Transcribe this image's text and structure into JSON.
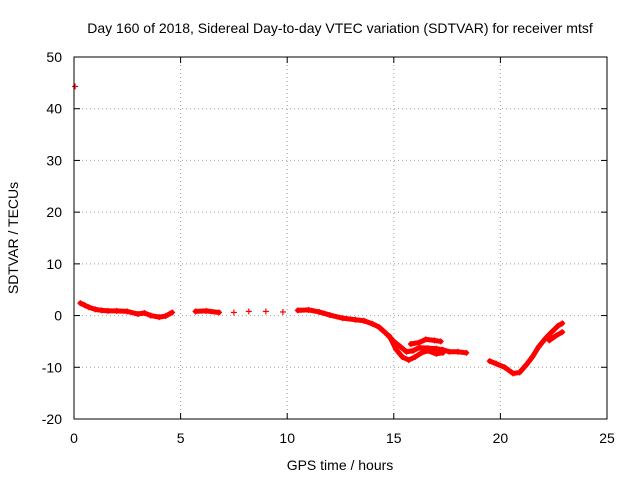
{
  "chart_data": {
    "type": "scatter",
    "title": "Day 160 of 2018, Sidereal Day-to-day VTEC variation (SDTVAR) for receiver mtsf",
    "xlabel": "GPS time / hours",
    "ylabel": "SDTVAR / TECUs",
    "xlim": [
      0,
      25
    ],
    "ylim": [
      -20,
      50
    ],
    "xticks": [
      "0",
      "5",
      "10",
      "15",
      "20",
      "25"
    ],
    "yticks": [
      "-20",
      "-10",
      "0",
      "10",
      "20",
      "30",
      "40",
      "50"
    ],
    "grid": true,
    "series": [
      {
        "name": "sdtvar-upper",
        "color": "#ff0000",
        "points": [
          [
            0.3,
            2.4
          ],
          [
            0.5,
            2.0
          ],
          [
            0.7,
            1.6
          ],
          [
            1.0,
            1.2
          ],
          [
            1.3,
            1.0
          ],
          [
            1.6,
            0.9
          ],
          [
            2.0,
            0.9
          ],
          [
            2.5,
            0.8
          ],
          [
            3.0,
            0.3
          ],
          [
            3.3,
            0.5
          ],
          [
            3.6,
            0.0
          ],
          [
            4.0,
            -0.3
          ],
          [
            4.3,
            -0.1
          ],
          [
            4.6,
            0.6
          ],
          [
            5.7,
            0.8
          ],
          [
            6.2,
            0.9
          ],
          [
            6.8,
            0.6
          ],
          [
            7.5,
            0.6
          ],
          [
            8.2,
            0.8
          ],
          [
            9.0,
            0.8
          ],
          [
            9.8,
            0.7
          ],
          [
            10.5,
            1.0
          ],
          [
            11.0,
            1.1
          ],
          [
            11.5,
            0.7
          ],
          [
            12.0,
            0.1
          ],
          [
            12.6,
            -0.5
          ],
          [
            13.2,
            -0.8
          ],
          [
            13.6,
            -1.0
          ],
          [
            14.0,
            -1.6
          ],
          [
            14.3,
            -2.2
          ],
          [
            14.6,
            -3.3
          ],
          [
            15.0,
            -5.0
          ],
          [
            15.3,
            -6.0
          ],
          [
            15.6,
            -7.0
          ],
          [
            15.9,
            -6.8
          ],
          [
            16.2,
            -6.2
          ],
          [
            16.6,
            -6.3
          ],
          [
            17.0,
            -6.4
          ],
          [
            17.3,
            -6.6
          ],
          [
            17.6,
            -7.0
          ],
          [
            18.0,
            -7.0
          ],
          [
            18.4,
            -7.2
          ],
          [
            19.5,
            -8.8
          ],
          [
            19.8,
            -9.3
          ],
          [
            20.2,
            -10.0
          ],
          [
            20.6,
            -11.2
          ],
          [
            20.9,
            -11.0
          ],
          [
            21.2,
            -9.6
          ],
          [
            21.5,
            -8.0
          ],
          [
            21.8,
            -6.0
          ],
          [
            22.1,
            -4.5
          ],
          [
            22.4,
            -3.2
          ],
          [
            22.7,
            -2.0
          ],
          [
            22.9,
            -1.5
          ]
        ]
      },
      {
        "name": "sdtvar-lower",
        "color": "#ff0000",
        "points": [
          [
            14.8,
            -4.0
          ],
          [
            15.1,
            -6.5
          ],
          [
            15.4,
            -8.0
          ],
          [
            15.7,
            -8.6
          ],
          [
            16.0,
            -8.0
          ],
          [
            16.3,
            -7.2
          ],
          [
            16.6,
            -6.8
          ],
          [
            17.0,
            -7.4
          ],
          [
            17.3,
            -7.2
          ],
          [
            15.8,
            -5.5
          ],
          [
            16.2,
            -5.2
          ],
          [
            16.5,
            -4.6
          ],
          [
            16.9,
            -4.8
          ],
          [
            17.2,
            -5.0
          ],
          [
            22.3,
            -4.8
          ],
          [
            22.6,
            -3.9
          ],
          [
            22.9,
            -3.2
          ]
        ]
      },
      {
        "name": "outlier",
        "color": "#ff0000",
        "points": [
          [
            0.05,
            44.3
          ]
        ]
      }
    ]
  }
}
